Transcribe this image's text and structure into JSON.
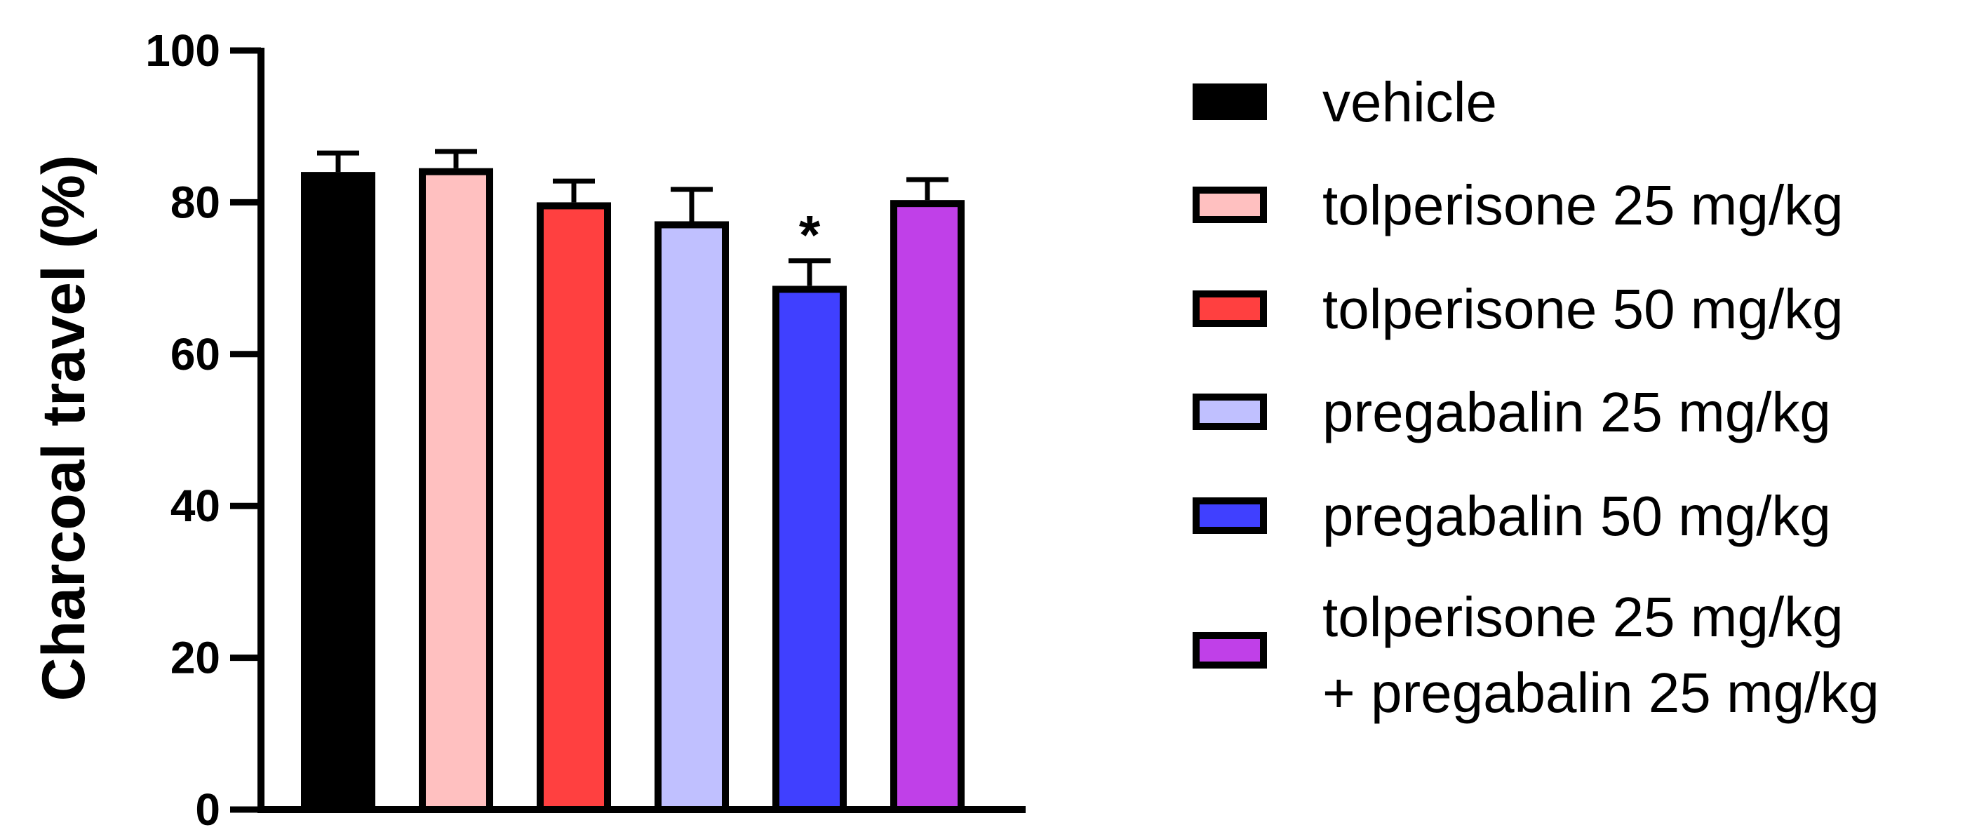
{
  "chart_data": {
    "type": "bar",
    "ylabel": "Charcoal travel (%)",
    "xlabel": "",
    "ylim": [
      0,
      100
    ],
    "yticks": [
      "0",
      "20",
      "40",
      "60",
      "80",
      "100"
    ],
    "legend_position": "right",
    "series": [
      {
        "name": "vehicle",
        "value": 84,
        "error": 2.5,
        "color": "#000000"
      },
      {
        "name": "tolperisone 25 mg/kg",
        "value": 84.5,
        "error": 2.2,
        "color": "#ffc0c0"
      },
      {
        "name": "tolperisone 50 mg/kg",
        "value": 80,
        "error": 2.8,
        "color": "#ff4040"
      },
      {
        "name": "pregabalin 25 mg/kg",
        "value": 77.5,
        "error": 4.2,
        "color": "#c0c0ff"
      },
      {
        "name": "pregabalin 50 mg/kg",
        "value": 69,
        "error": 3.3,
        "color": "#4040ff"
      },
      {
        "name": "tolperisone 25 mg/kg",
        "name_line2": "+ pregabalin 25 mg/kg",
        "value": 80.3,
        "error": 2.7,
        "color": "#c040e8"
      }
    ],
    "annotations": [
      {
        "series_index": 4,
        "text": "*"
      }
    ]
  }
}
